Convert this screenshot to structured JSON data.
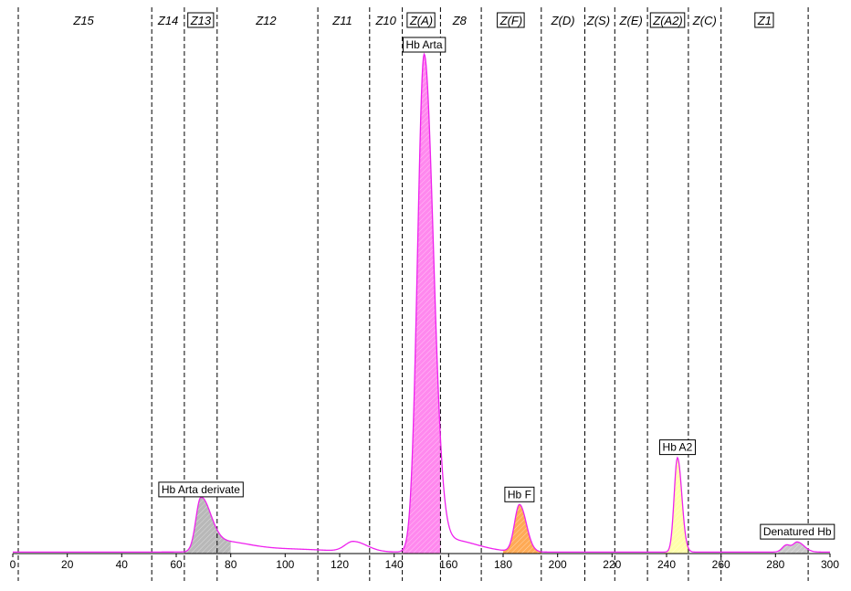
{
  "chart_data": {
    "type": "line",
    "title": "",
    "xlabel": "",
    "ylabel": "",
    "xlim": [
      0,
      300
    ],
    "ylim": [
      0,
      100
    ],
    "x_ticks": [
      0,
      20,
      40,
      60,
      80,
      100,
      120,
      140,
      160,
      180,
      200,
      220,
      240,
      260,
      280,
      300
    ],
    "curve_color": "#ee22ee",
    "zone_boundaries": [
      2,
      51,
      63,
      75,
      112,
      131,
      143,
      157,
      172,
      194,
      210,
      221,
      233,
      248,
      260,
      292
    ],
    "zones": [
      {
        "label": "Z15",
        "boxed": false,
        "center": 26
      },
      {
        "label": "Z14",
        "boxed": false,
        "center": 57
      },
      {
        "label": "Z13",
        "boxed": true,
        "center": 69
      },
      {
        "label": "Z12",
        "boxed": false,
        "center": 93
      },
      {
        "label": "Z11",
        "boxed": false,
        "center": 121
      },
      {
        "label": "Z10",
        "boxed": false,
        "center": 137
      },
      {
        "label": "Z(A)",
        "boxed": true,
        "center": 150
      },
      {
        "label": "Z8",
        "boxed": false,
        "center": 164
      },
      {
        "label": "Z(F)",
        "boxed": true,
        "center": 183
      },
      {
        "label": "Z(D)",
        "boxed": false,
        "center": 202
      },
      {
        "label": "Z(S)",
        "boxed": false,
        "center": 215
      },
      {
        "label": "Z(E)",
        "boxed": false,
        "center": 227
      },
      {
        "label": "Z(A2)",
        "boxed": true,
        "center": 240.5
      },
      {
        "label": "Z(C)",
        "boxed": false,
        "center": 254
      },
      {
        "label": "Z1",
        "boxed": true,
        "center": 276
      }
    ],
    "baseline": 0.3,
    "peaks": [
      {
        "center": 69,
        "height": 10.5,
        "sigma_left": 1.8,
        "sigma_right": 3.5
      },
      {
        "center": 76,
        "height": 2.0,
        "sigma_left": 4,
        "sigma_right": 10
      },
      {
        "center": 100,
        "height": 0.6,
        "sigma_left": 15,
        "sigma_right": 15
      },
      {
        "center": 125,
        "height": 2.0,
        "sigma_left": 3,
        "sigma_right": 5
      },
      {
        "center": 151,
        "height": 100,
        "sigma_left": 2.4,
        "sigma_right": 3.4
      },
      {
        "center": 160,
        "height": 2.5,
        "sigma_left": 4,
        "sigma_right": 10
      },
      {
        "center": 186,
        "height": 9.5,
        "sigma_left": 1.8,
        "sigma_right": 2.5
      },
      {
        "center": 244,
        "height": 19,
        "sigma_left": 1.2,
        "sigma_right": 1.6
      },
      {
        "center": 284,
        "height": 1.4,
        "sigma_left": 1.5,
        "sigma_right": 1.5
      },
      {
        "center": 288,
        "height": 2.0,
        "sigma_left": 1.5,
        "sigma_right": 2.5
      }
    ],
    "filled_areas": [
      {
        "from": 63,
        "to": 80,
        "color": "#b8b8b8"
      },
      {
        "from": 143,
        "to": 157,
        "color": "#ff88ee"
      },
      {
        "from": 180,
        "to": 194,
        "color": "#ffaa55"
      },
      {
        "from": 239,
        "to": 248,
        "color": "#ffffaa"
      },
      {
        "from": 281,
        "to": 292,
        "color": "#c8c8c8"
      }
    ],
    "annotations": [
      {
        "text": "Hb Arta derivate",
        "x": 69,
        "y": 10.5
      },
      {
        "text": "Hb Arta",
        "x": 151,
        "y": 100
      },
      {
        "text": "Hb F",
        "x": 186,
        "y": 9.5
      },
      {
        "text": "Hb A2",
        "x": 244,
        "y": 19
      },
      {
        "text": "Denatured Hb",
        "x": 288,
        "y": 2.0
      }
    ]
  }
}
